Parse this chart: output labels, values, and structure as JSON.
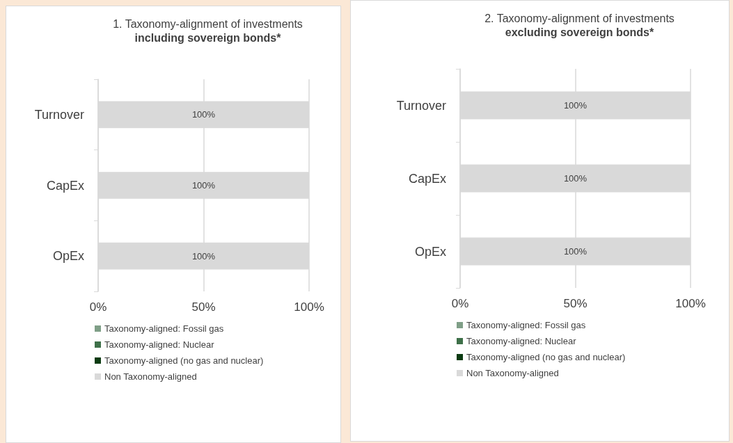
{
  "chart_data": [
    {
      "type": "bar",
      "title": "1. Taxonomy-alignment of investments",
      "subtitle": "including sovereign bonds*",
      "orientation": "horizontal",
      "stacked": true,
      "categories": [
        "Turnover",
        "CapEx",
        "OpEx"
      ],
      "xlim": [
        0,
        100
      ],
      "xticks": [
        {
          "value": 0,
          "label": "0%"
        },
        {
          "value": 50,
          "label": "50%"
        },
        {
          "value": 100,
          "label": "100%"
        }
      ],
      "grid": "x",
      "legend": "bottom",
      "series": [
        {
          "name": "Taxonomy-aligned: Fossil gas",
          "color": "#7f9f87",
          "values": [
            0,
            0,
            0
          ],
          "value_labels": [
            null,
            null,
            null
          ]
        },
        {
          "name": "Taxonomy-aligned: Nuclear",
          "color": "#3e7049",
          "values": [
            0,
            0,
            0
          ],
          "value_labels": [
            null,
            null,
            null
          ]
        },
        {
          "name": "Taxonomy-aligned (no gas and nuclear)",
          "color": "#0b3b12",
          "values": [
            0,
            0,
            0
          ],
          "value_labels": [
            null,
            null,
            null
          ]
        },
        {
          "name": "Non Taxonomy-aligned",
          "color": "#d9d9d9",
          "values": [
            100,
            100,
            100
          ],
          "value_labels": [
            "100%",
            "100%",
            "100%"
          ]
        }
      ]
    },
    {
      "type": "bar",
      "title": "2. Taxonomy-alignment of investments",
      "subtitle": "excluding sovereign bonds*",
      "orientation": "horizontal",
      "stacked": true,
      "categories": [
        "Turnover",
        "CapEx",
        "OpEx"
      ],
      "xlim": [
        0,
        100
      ],
      "xticks": [
        {
          "value": 0,
          "label": "0%"
        },
        {
          "value": 50,
          "label": "50%"
        },
        {
          "value": 100,
          "label": "100%"
        }
      ],
      "grid": "x",
      "legend": "bottom",
      "series": [
        {
          "name": "Taxonomy-aligned: Fossil gas",
          "color": "#7f9f87",
          "values": [
            0,
            0,
            0
          ],
          "value_labels": [
            null,
            null,
            null
          ]
        },
        {
          "name": "Taxonomy-aligned: Nuclear",
          "color": "#3e7049",
          "values": [
            0,
            0,
            0
          ],
          "value_labels": [
            null,
            null,
            null
          ]
        },
        {
          "name": "Taxonomy-aligned (no gas and nuclear)",
          "color": "#0b3b12",
          "values": [
            0,
            0,
            0
          ],
          "value_labels": [
            null,
            null,
            null
          ]
        },
        {
          "name": "Non Taxonomy-aligned",
          "color": "#d9d9d9",
          "values": [
            100,
            100,
            100
          ],
          "value_labels": [
            "100%",
            "100%",
            "100%"
          ]
        }
      ]
    }
  ]
}
